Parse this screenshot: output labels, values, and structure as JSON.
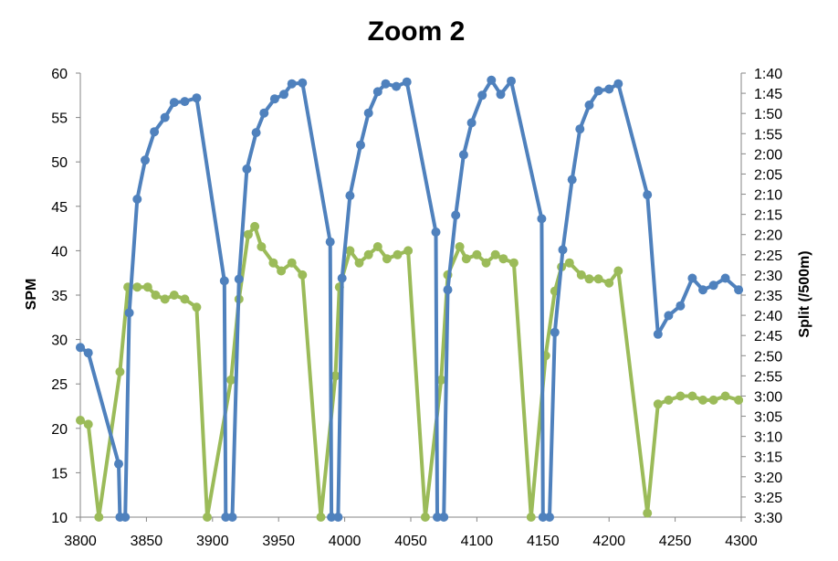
{
  "chart_data": {
    "type": "line",
    "title": "Zoom 2",
    "xlabel": "",
    "ylabel": "SPM",
    "y2label": "Split (/500m)",
    "xlim": [
      3800,
      4300
    ],
    "ylim": [
      10,
      60
    ],
    "y2lim_seconds": [
      100,
      210
    ],
    "grid": false,
    "x_ticks": [
      "3800",
      "3850",
      "3900",
      "3950",
      "4000",
      "4050",
      "4100",
      "4150",
      "4200",
      "4250",
      "4300"
    ],
    "y_ticks": [
      "10",
      "15",
      "20",
      "25",
      "30",
      "35",
      "40",
      "45",
      "50",
      "55",
      "60"
    ],
    "y2_ticks": [
      "1:40",
      "1:45",
      "1:50",
      "1:55",
      "2:00",
      "2:05",
      "2:10",
      "2:15",
      "2:20",
      "2:25",
      "2:30",
      "2:35",
      "2:40",
      "2:45",
      "2:50",
      "2:55",
      "3:00",
      "3:05",
      "3:10",
      "3:15",
      "3:20",
      "3:25",
      "3:30"
    ],
    "series": [
      {
        "color": "#4F81BD",
        "axis": "left",
        "points": [
          [
            3800,
            29.1
          ],
          [
            3806,
            28.5
          ],
          [
            3829,
            16
          ],
          [
            3830,
            10
          ],
          [
            3834,
            10
          ],
          [
            3837,
            33
          ],
          [
            3843,
            45.8
          ],
          [
            3849,
            50.2
          ],
          [
            3856,
            53.4
          ],
          [
            3864,
            55
          ],
          [
            3871,
            56.7
          ],
          [
            3879,
            56.8
          ],
          [
            3888,
            57.2
          ],
          [
            3909,
            36.6
          ],
          [
            3910,
            10
          ],
          [
            3915,
            10
          ],
          [
            3920,
            36.8
          ],
          [
            3926,
            49.2
          ],
          [
            3933,
            53.3
          ],
          [
            3939,
            55.5
          ],
          [
            3947,
            57.1
          ],
          [
            3954,
            57.6
          ],
          [
            3960,
            58.8
          ],
          [
            3968,
            58.9
          ],
          [
            3989,
            41
          ],
          [
            3990,
            10
          ],
          [
            3995,
            10
          ],
          [
            3998,
            36.9
          ],
          [
            4004,
            46.2
          ],
          [
            4012,
            51.9
          ],
          [
            4018,
            55.5
          ],
          [
            4025,
            57.9
          ],
          [
            4031,
            58.8
          ],
          [
            4039,
            58.5
          ],
          [
            4047,
            59
          ],
          [
            4069,
            42.1
          ],
          [
            4070,
            10
          ],
          [
            4075,
            10
          ],
          [
            4078,
            35.6
          ],
          [
            4084,
            44
          ],
          [
            4090,
            50.8
          ],
          [
            4096,
            54.4
          ],
          [
            4104,
            57.5
          ],
          [
            4111,
            59.2
          ],
          [
            4118,
            57.6
          ],
          [
            4126,
            59.1
          ],
          [
            4149,
            43.6
          ],
          [
            4150,
            10
          ],
          [
            4155,
            10
          ],
          [
            4159,
            30.8
          ],
          [
            4165,
            40.1
          ],
          [
            4172,
            48
          ],
          [
            4178,
            53.7
          ],
          [
            4185,
            56.4
          ],
          [
            4192,
            58
          ],
          [
            4200,
            58.2
          ],
          [
            4207,
            58.8
          ],
          [
            4229,
            46.3
          ],
          [
            4237,
            30.6
          ],
          [
            4245,
            32.7
          ],
          [
            4254,
            33.8
          ],
          [
            4263,
            36.9
          ],
          [
            4271,
            35.6
          ],
          [
            4279,
            36.1
          ],
          [
            4288,
            36.9
          ],
          [
            4298,
            35.6
          ]
        ]
      },
      {
        "color": "#9BBB59",
        "axis": "right",
        "points": [
          [
            3800,
            "3:06"
          ],
          [
            3806,
            "3:07"
          ],
          [
            3814,
            "3:30"
          ],
          [
            3830,
            "2:54"
          ],
          [
            3836,
            "2:33"
          ],
          [
            3843,
            "2:33"
          ],
          [
            3851,
            "2:33"
          ],
          [
            3857,
            "2:35"
          ],
          [
            3864,
            "2:36"
          ],
          [
            3871,
            "2:35"
          ],
          [
            3879,
            "2:36"
          ],
          [
            3888,
            "2:38"
          ],
          [
            3896,
            "3:30"
          ],
          [
            3914,
            "2:56"
          ],
          [
            3920,
            "2:36"
          ],
          [
            3927,
            "2:20"
          ],
          [
            3932,
            "2:18"
          ],
          [
            3937,
            "2:23"
          ],
          [
            3946,
            "2:27"
          ],
          [
            3952,
            "2:29"
          ],
          [
            3960,
            "2:27"
          ],
          [
            3968,
            "2:30"
          ],
          [
            3982,
            "3:30"
          ],
          [
            3993,
            "2:55"
          ],
          [
            3996,
            "2:33"
          ],
          [
            4004,
            "2:24"
          ],
          [
            4011,
            "2:27"
          ],
          [
            4018,
            "2:25"
          ],
          [
            4025,
            "2:23"
          ],
          [
            4032,
            "2:26"
          ],
          [
            4040,
            "2:25"
          ],
          [
            4048,
            "2:24"
          ],
          [
            4061,
            "3:30"
          ],
          [
            4073,
            "2:56"
          ],
          [
            4078,
            "2:30"
          ],
          [
            4087,
            "2:23"
          ],
          [
            4092,
            "2:26"
          ],
          [
            4100,
            "2:25"
          ],
          [
            4107,
            "2:27"
          ],
          [
            4114,
            "2:25"
          ],
          [
            4120,
            "2:26"
          ],
          [
            4128,
            "2:27"
          ],
          [
            4141,
            "3:30"
          ],
          [
            4152,
            "2:50"
          ],
          [
            4159,
            "2:34"
          ],
          [
            4164,
            "2:28"
          ],
          [
            4170,
            "2:27"
          ],
          [
            4179,
            "2:30"
          ],
          [
            4185,
            "2:31"
          ],
          [
            4192,
            "2:31"
          ],
          [
            4200,
            "2:32"
          ],
          [
            4207,
            "2:29"
          ],
          [
            4229,
            "3:29"
          ],
          [
            4237,
            "3:02"
          ],
          [
            4245,
            "3:01"
          ],
          [
            4254,
            "3:00"
          ],
          [
            4263,
            "3:00"
          ],
          [
            4271,
            "3:01"
          ],
          [
            4279,
            "3:01"
          ],
          [
            4288,
            "3:00"
          ],
          [
            4298,
            "3:01"
          ]
        ]
      }
    ]
  }
}
